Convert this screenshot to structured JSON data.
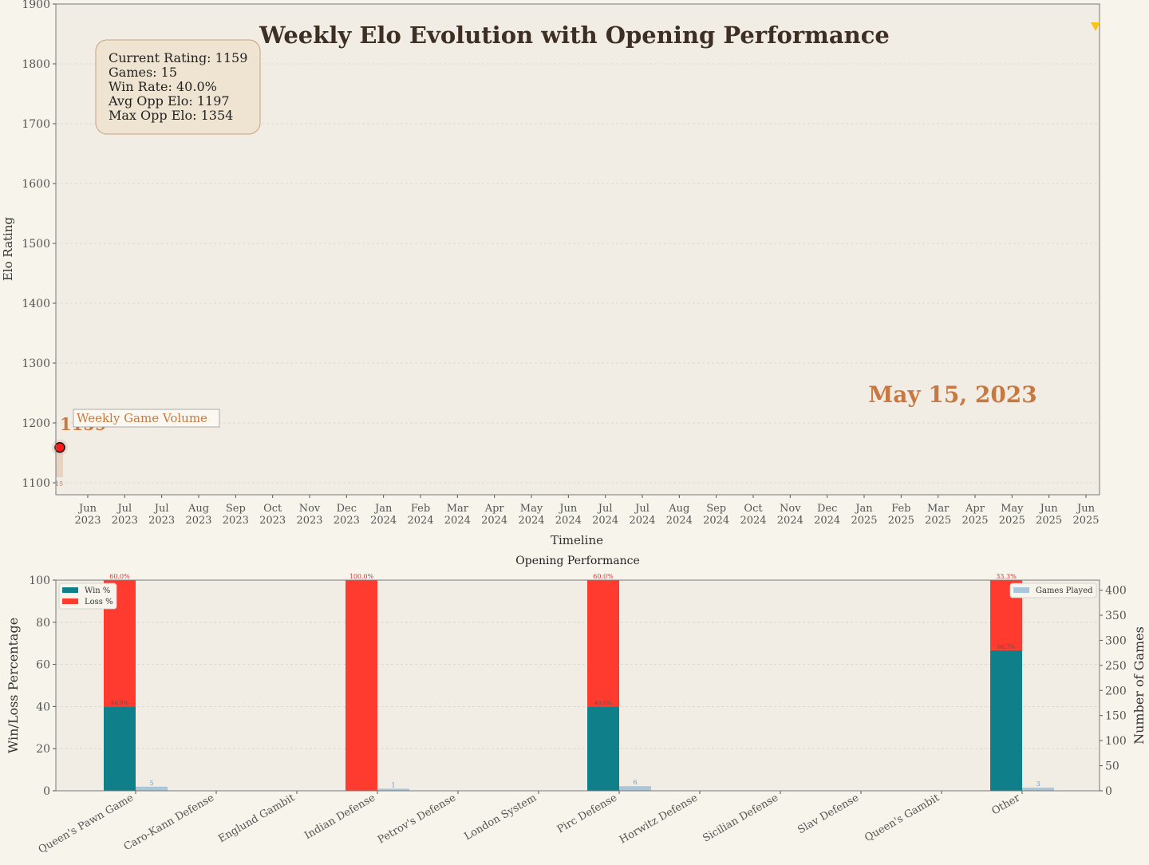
{
  "colors": {
    "background": "#f7f4ec",
    "plot_bg": "#f1ede4",
    "title": "#3e2f25",
    "accent": "#c87941",
    "win": "#0f7f8a",
    "loss": "#ff3b2f",
    "games": "#a9c6da",
    "marker_fill": "#ff1a1a",
    "marker_up": "#f5c518"
  },
  "chart_data": [
    {
      "type": "line",
      "title": "Weekly Elo Evolution with Opening Performance",
      "xlabel": "Timeline",
      "ylabel": "Elo Rating",
      "ylim": [
        1080,
        1900
      ],
      "yticks": [
        1100,
        1200,
        1300,
        1400,
        1500,
        1600,
        1700,
        1800,
        1900
      ],
      "xticks": [
        [
          "Jun",
          "2023"
        ],
        [
          "Jul",
          "2023"
        ],
        [
          "Jul",
          "2023"
        ],
        [
          "Aug",
          "2023"
        ],
        [
          "Sep",
          "2023"
        ],
        [
          "Oct",
          "2023"
        ],
        [
          "Nov",
          "2023"
        ],
        [
          "Dec",
          "2023"
        ],
        [
          "Jan",
          "2024"
        ],
        [
          "Feb",
          "2024"
        ],
        [
          "Mar",
          "2024"
        ],
        [
          "Apr",
          "2024"
        ],
        [
          "May",
          "2024"
        ],
        [
          "Jun",
          "2024"
        ],
        [
          "Jul",
          "2024"
        ],
        [
          "Jul",
          "2024"
        ],
        [
          "Aug",
          "2024"
        ],
        [
          "Sep",
          "2024"
        ],
        [
          "Oct",
          "2024"
        ],
        [
          "Nov",
          "2024"
        ],
        [
          "Dec",
          "2024"
        ],
        [
          "Jan",
          "2025"
        ],
        [
          "Feb",
          "2025"
        ],
        [
          "Mar",
          "2025"
        ],
        [
          "Apr",
          "2025"
        ],
        [
          "May",
          "2025"
        ],
        [
          "Jun",
          "2025"
        ],
        [
          "Jun",
          "2025"
        ]
      ],
      "grid": true,
      "series": [
        {
          "points": [
            {
              "x": "May 15, 2023",
              "y": 1159
            }
          ]
        }
      ],
      "current_point_label": "1159",
      "volume_label": "Weekly Game Volume",
      "volume_bar_label": "15",
      "date_label": "May 15, 2023",
      "stats": [
        "Current Rating: 1159",
        "Games: 15",
        "Win Rate: 40.0%",
        "Avg Opp Elo: 1197",
        "Max Opp Elo: 1354"
      ]
    },
    {
      "type": "bar",
      "title": "Opening Performance",
      "xlabel": "",
      "ylabel": "Win/Loss Percentage",
      "y2label": "Number of Games",
      "ylim": [
        0,
        100
      ],
      "yticks": [
        0,
        20,
        40,
        60,
        80,
        100
      ],
      "y2lim": [
        0,
        420
      ],
      "y2ticks": [
        0,
        50,
        100,
        150,
        200,
        250,
        300,
        350,
        400
      ],
      "categories": [
        "Queen's Pawn Game",
        "Caro-Kann Defense",
        "Englund Gambit",
        "Indian Defense",
        "Petrov's Defense",
        "London System",
        "Pirc Defense",
        "Horwitz Defense",
        "Sicilian Defense",
        "Slav Defense",
        "Queen's Gambit",
        "Other"
      ],
      "series": [
        {
          "name": "Win %",
          "values": [
            40,
            0,
            0,
            0,
            0,
            0,
            40,
            0,
            0,
            0,
            0,
            66.7
          ]
        },
        {
          "name": "Loss %",
          "values": [
            60,
            0,
            0,
            100,
            0,
            0,
            60,
            0,
            0,
            0,
            0,
            33.3
          ]
        },
        {
          "name": "Games Played",
          "values": [
            5,
            0,
            0,
            1,
            0,
            0,
            6,
            0,
            0,
            0,
            0,
            3
          ]
        }
      ],
      "win_labels": [
        "40.0%",
        "",
        "",
        "",
        "",
        "",
        "40.0%",
        "",
        "",
        "",
        "",
        "66.7%"
      ],
      "loss_labels": [
        "60.0%",
        "",
        "",
        "100.0%",
        "",
        "",
        "60.0%",
        "",
        "",
        "",
        "",
        "33.3%"
      ],
      "games_labels": [
        "5",
        "",
        "",
        "1",
        "",
        "",
        "6",
        "",
        "",
        "",
        "",
        "3"
      ],
      "legend_left": "top-left",
      "legend_right": "top-right"
    }
  ]
}
